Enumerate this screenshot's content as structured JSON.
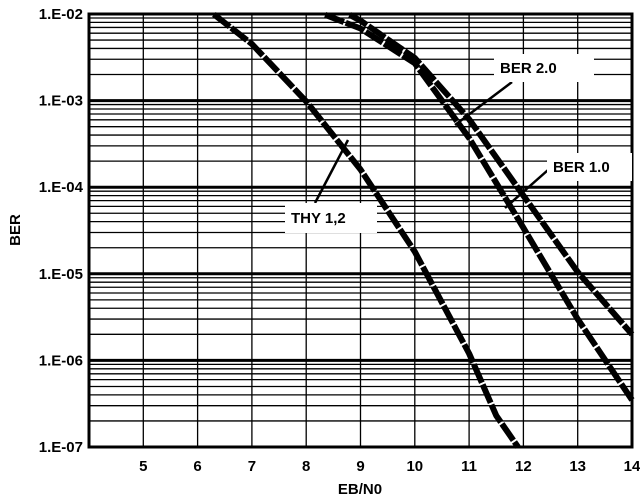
{
  "chart_data": {
    "type": "line",
    "xlabel": "EB/N0",
    "ylabel": "BER",
    "xlim": [
      4,
      14
    ],
    "ylim": [
      1e-07,
      0.01
    ],
    "yscale": "log",
    "grid": true,
    "x_ticks": [
      5,
      6,
      7,
      8,
      9,
      10,
      11,
      12,
      13,
      14
    ],
    "x_tick_labels": [
      "5",
      "6",
      "7",
      "8",
      "9",
      "10",
      "11",
      "12",
      "13",
      "14"
    ],
    "y_ticks": [
      0.01,
      0.001,
      0.0001,
      1e-05,
      1e-06,
      1e-07
    ],
    "y_tick_labels": [
      "1.E-02",
      "1.E-03",
      "1.E-04",
      "1.E-05",
      "1.E-06",
      "1.E-07"
    ],
    "series": [
      {
        "name": "THY 1,2",
        "x": [
          6.3,
          7.0,
          8.0,
          9.0,
          10.0,
          11.0,
          11.5,
          11.9
        ],
        "y": [
          0.0099,
          0.0045,
          0.00098,
          0.00016,
          1.8e-05,
          1.2e-06,
          2.3e-07,
          1e-07
        ]
      },
      {
        "name": "BER 1.0",
        "x": [
          8.35,
          9.0,
          10.0,
          11.0,
          12.0,
          13.0,
          14.0
        ],
        "y": [
          0.0098,
          0.0068,
          0.0027,
          0.00037,
          3.4e-05,
          3e-06,
          3.5e-07
        ]
      },
      {
        "name": "BER 2.0",
        "x": [
          8.8,
          9.0,
          10.0,
          11.0,
          12.0,
          13.0,
          14.0
        ],
        "y": [
          0.0098,
          0.0084,
          0.0031,
          0.00061,
          8e-05,
          1.05e-05,
          2e-06
        ]
      }
    ],
    "annotations": [
      {
        "text": "BER 2.0",
        "series": "BER 2.0"
      },
      {
        "text": "BER 1.0",
        "series": "BER 1.0"
      },
      {
        "text": "THY 1,2",
        "series": "THY 1,2"
      }
    ]
  }
}
